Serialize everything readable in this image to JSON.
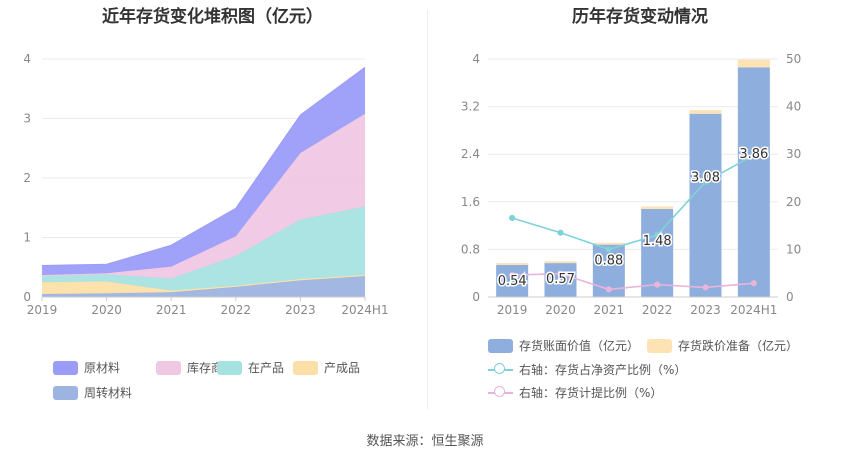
{
  "source_note": "数据来源：恒生聚源",
  "chart_data": [
    {
      "type": "area",
      "title": "近年存货变化堆积图（亿元）",
      "stacked": true,
      "categories": [
        "2019",
        "2020",
        "2021",
        "2022",
        "2023",
        "2024H1"
      ],
      "ylim": [
        0,
        4
      ],
      "yticks": [
        "0",
        "1",
        "2",
        "3",
        "4"
      ],
      "grid": true,
      "legend_position": "bottom",
      "series": [
        {
          "name": "周转材料",
          "color": "#9db4e0",
          "values": [
            0.05,
            0.06,
            0.08,
            0.17,
            0.28,
            0.35
          ]
        },
        {
          "name": "产成品",
          "color": "#fde0a8",
          "values": [
            0.2,
            0.2,
            0.03,
            0.02,
            0.02,
            0.02
          ]
        },
        {
          "name": "在产品",
          "color": "#a6e3e0",
          "values": [
            0.1,
            0.12,
            0.2,
            0.5,
            1.0,
            1.15
          ]
        },
        {
          "name": "库存商品",
          "color": "#f0c8e4",
          "values": [
            0.02,
            0.02,
            0.2,
            0.33,
            1.12,
            1.56
          ]
        },
        {
          "name": "原材料",
          "color": "#9b9cf8",
          "values": [
            0.16,
            0.15,
            0.36,
            0.47,
            0.64,
            0.78
          ]
        }
      ],
      "legend_order": [
        "原材料",
        "库存商品",
        "在产品",
        "产成品",
        "周转材料"
      ]
    },
    {
      "type": "bar",
      "title": "历年存货变动情况",
      "categories": [
        "2019",
        "2020",
        "2021",
        "2022",
        "2023",
        "2024H1"
      ],
      "ylim": [
        0,
        4
      ],
      "yticks": [
        "0",
        "0.8",
        "1.6",
        "2.4",
        "3.2",
        "4"
      ],
      "y2lim": [
        0,
        50
      ],
      "y2ticks": [
        "0",
        "10",
        "20",
        "30",
        "40",
        "50"
      ],
      "grid": true,
      "legend_position": "bottom",
      "series": [
        {
          "name": "存货账面价值（亿元）",
          "kind": "bar",
          "axis": "left",
          "color": "#8eaedd",
          "values": [
            0.54,
            0.57,
            0.88,
            1.48,
            3.08,
            3.86
          ],
          "labels": [
            "0.54",
            "0.57",
            "0.88",
            "1.48",
            "3.08",
            "3.86"
          ]
        },
        {
          "name": "存货跌价准备（亿元）",
          "kind": "bar",
          "axis": "left",
          "color": "#fde2b4",
          "values": [
            0.03,
            0.03,
            0.03,
            0.04,
            0.06,
            0.13
          ]
        },
        {
          "name": "右轴：存货占净资产比例（%）",
          "kind": "line",
          "axis": "right",
          "color": "#7fd2d8",
          "values": [
            16.6,
            13.5,
            10.0,
            13.0,
            24.2,
            29.8
          ]
        },
        {
          "name": "右轴：存货计提比例（%）",
          "kind": "line",
          "axis": "right",
          "color": "#e9b3dc",
          "values": [
            4.6,
            4.9,
            1.6,
            2.6,
            2.0,
            2.9
          ]
        }
      ]
    }
  ]
}
